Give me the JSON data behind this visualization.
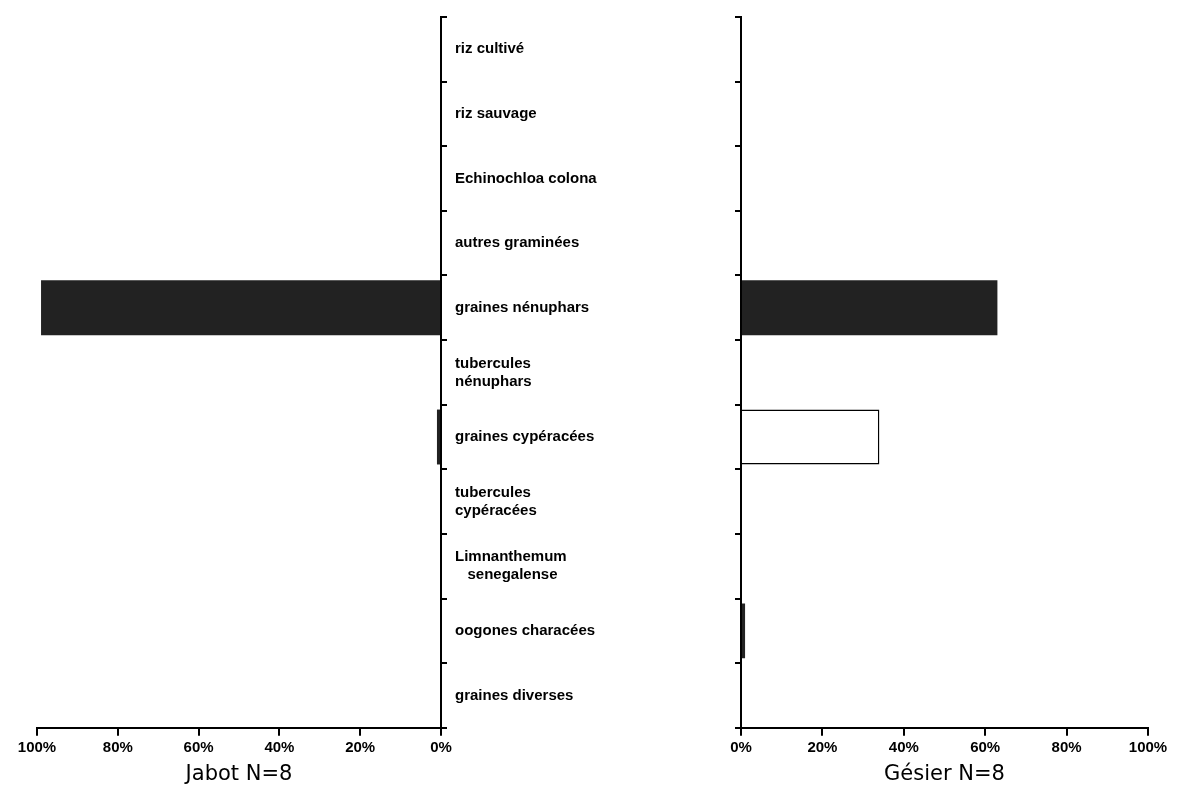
{
  "chart_data": [
    {
      "type": "bar",
      "orientation": "horizontal",
      "xlabel": "Jabot N=8",
      "categories": [
        "riz cultivé",
        "riz sauvage",
        "Echinochloa colona",
        "autres graminées",
        "graines nénuphars",
        "tubercules\nnénuphars",
        "graines cypéracées",
        "tubercules\ncypéracées",
        "Limnanthemum\n   senegalense",
        "oogones characées",
        "graines diverses"
      ],
      "values": [
        0,
        0,
        0,
        0,
        99,
        0,
        1,
        0,
        0,
        0,
        0
      ],
      "colors": [
        "#222222",
        "#222222",
        "#222222",
        "#222222",
        "#222222",
        "#222222",
        "#222222",
        "#222222",
        "#222222",
        "#222222",
        "#222222"
      ],
      "xlim": [
        100,
        0
      ],
      "xticks": [
        {
          "value": 100,
          "label": "100%"
        },
        {
          "value": 80,
          "label": "80%"
        },
        {
          "value": 60,
          "label": "60%"
        },
        {
          "value": 40,
          "label": "40%"
        },
        {
          "value": 20,
          "label": "20%"
        },
        {
          "value": 0,
          "label": "0%"
        }
      ],
      "grid": false,
      "legend": false
    },
    {
      "type": "bar",
      "orientation": "horizontal",
      "xlabel": "Gésier N=8",
      "categories": [
        null,
        null,
        null,
        null,
        null,
        null,
        null,
        null,
        null,
        null,
        null
      ],
      "values": [
        0,
        0,
        0,
        0,
        63,
        0,
        34,
        0,
        0,
        1,
        0
      ],
      "colors": [
        "#222222",
        "#222222",
        "#222222",
        "#222222",
        "#222222",
        "#ffffff",
        "#ffffff",
        "#ffffff",
        "#ffffff",
        "#222222",
        "#222222"
      ],
      "xlim": [
        0,
        100
      ],
      "xticks": [
        {
          "value": 0,
          "label": "0%"
        },
        {
          "value": 20,
          "label": "20%"
        },
        {
          "value": 40,
          "label": "40%"
        },
        {
          "value": 60,
          "label": "60%"
        },
        {
          "value": 80,
          "label": "80%"
        },
        {
          "value": 100,
          "label": "100%"
        }
      ],
      "grid": false,
      "legend": false
    }
  ]
}
